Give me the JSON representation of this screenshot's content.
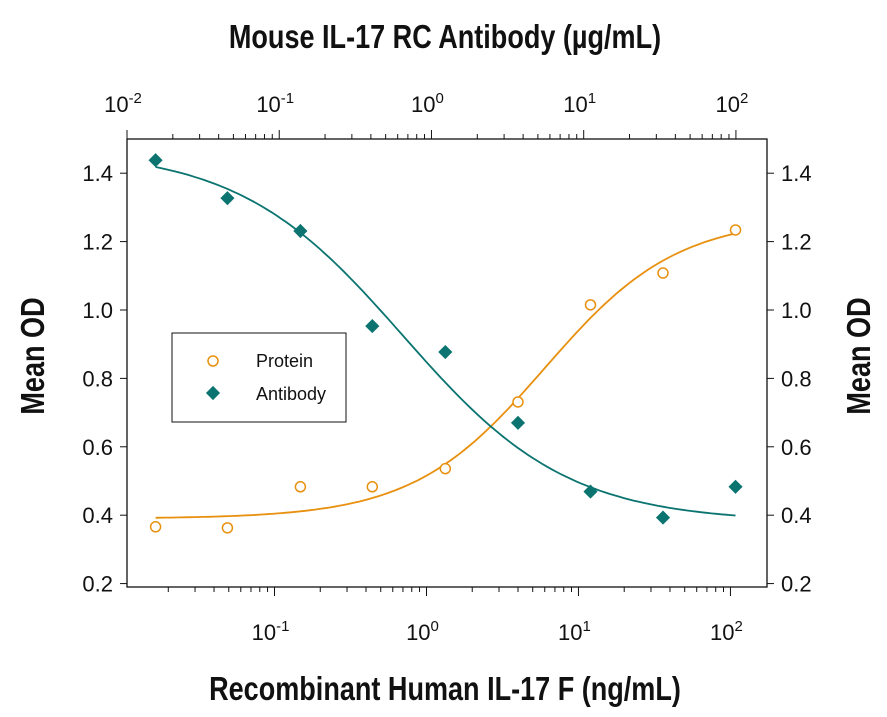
{
  "chart_data": {
    "type": "scatter",
    "title": "Mouse IL-17 RC  Antibody (µg/mL)",
    "xlabel": "Recombinant Human IL-17 F (ng/mL)",
    "ylabel": "Mean OD",
    "ylabel_right": "Mean OD",
    "x_scale": "log",
    "x_lim": [
      0.0107,
      174
    ],
    "top_x_lim": [
      0.01,
      160
    ],
    "ylim": [
      0.19,
      1.5
    ],
    "y_ticks": [
      "0.2",
      "0.4",
      "0.6",
      "0.8",
      "1.0",
      "1.2",
      "1.4"
    ],
    "x_ticks_bottom": [
      {
        "base": "10",
        "exp": "-1"
      },
      {
        "base": "10",
        "exp": "0"
      },
      {
        "base": "10",
        "exp": "1"
      },
      {
        "base": "10",
        "exp": "2"
      }
    ],
    "x_ticks_top": [
      {
        "base": "10",
        "exp": "-2"
      },
      {
        "base": "10",
        "exp": "-1"
      },
      {
        "base": "10",
        "exp": "0"
      },
      {
        "base": "10",
        "exp": "1"
      },
      {
        "base": "10",
        "exp": "2"
      }
    ],
    "grid": false,
    "legend_placement": "center-left",
    "series": [
      {
        "name": "Protein",
        "marker": "open-circle",
        "color": "#E8900F",
        "x": [
          0.0165,
          0.049,
          0.148,
          0.44,
          1.33,
          4.0,
          12,
          36,
          108
        ],
        "y": [
          0.366,
          0.363,
          0.483,
          0.483,
          0.536,
          0.731,
          1.015,
          1.108,
          1.234
        ],
        "fit": {
          "bottom": 0.39,
          "top": 1.27,
          "ec50": 6.0,
          "hill": 1.0
        }
      },
      {
        "name": "Antibody",
        "marker": "filled-diamond",
        "color": "#0B7470",
        "x": [
          0.0165,
          0.049,
          0.148,
          0.44,
          1.33,
          4.0,
          12,
          36,
          108
        ],
        "y": [
          1.438,
          1.327,
          1.231,
          0.953,
          0.877,
          0.67,
          0.469,
          0.393,
          0.483
        ],
        "fit": {
          "bottom": 0.38,
          "top": 1.47,
          "ec50": 0.7,
          "hill": 0.8
        }
      }
    ]
  }
}
